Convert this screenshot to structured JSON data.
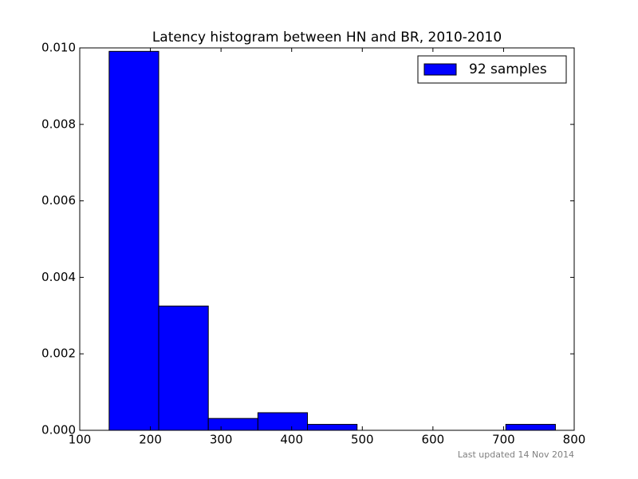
{
  "chart_data": {
    "type": "histogram",
    "title": "Latency histogram between HN and BR, 2010-2010",
    "bins": [
      141.6,
      211.8,
      282.0,
      352.2,
      422.4,
      492.6,
      562.8,
      633.0,
      703.2,
      773.4
    ],
    "values": [
      0.00991,
      0.00325,
      0.00031,
      0.00046,
      0.000155,
      0,
      0,
      0,
      0.000155
    ],
    "series_name": "92 samples",
    "color": "#0000ff",
    "xlim": [
      100,
      800
    ],
    "xticks": [
      100,
      200,
      300,
      400,
      500,
      600,
      700,
      800
    ],
    "ylim": [
      0,
      0.01
    ],
    "yticks": [
      {
        "value": 0,
        "label": "0.000"
      },
      {
        "value": 0.002,
        "label": "0.002"
      },
      {
        "value": 0.004,
        "label": "0.004"
      },
      {
        "value": 0.006,
        "label": "0.006"
      },
      {
        "value": 0.008,
        "label": "0.008"
      },
      {
        "value": 0.01,
        "label": "0.010"
      }
    ],
    "legend": "upper right",
    "footer": "Last updated 14 Nov 2014"
  }
}
